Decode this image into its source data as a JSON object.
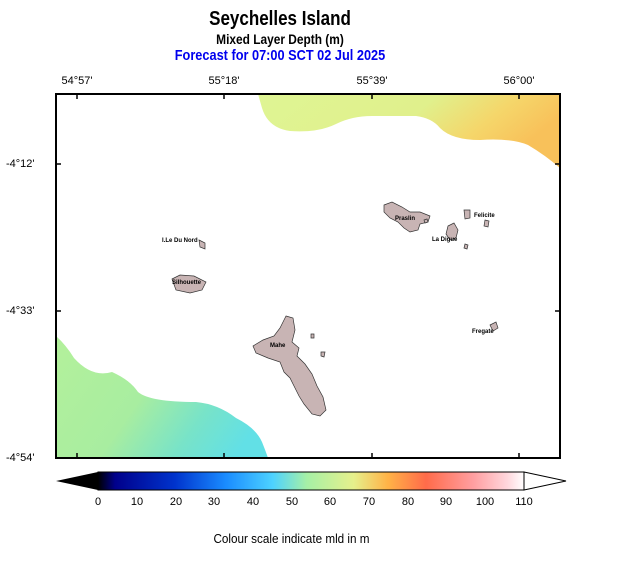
{
  "header": {
    "title": "Seychelles Island",
    "subtitle": "Mixed Layer Depth (m)",
    "forecast": "Forecast for  07:00 SCT 02 Jul 2025"
  },
  "map": {
    "lon_ticks": [
      "54°57'",
      "55°18'",
      "55°39'",
      "56°00'"
    ],
    "lat_ticks": [
      "-4°12'",
      "-4°33'",
      "-4°54'"
    ],
    "places": {
      "ile_du_nord": "I.Le Du Nord",
      "silhouette": "Silhouette",
      "praslin": "Praslin",
      "felicite": "Felicite",
      "la_digue": "La Digue",
      "mahe": "Mahe",
      "fregate": "Fregate"
    },
    "land_color": "#c8b4b4",
    "background_color": "#ffffff"
  },
  "colorbar": {
    "ticks": [
      "0",
      "10",
      "20",
      "30",
      "40",
      "50",
      "60",
      "70",
      "80",
      "90",
      "100",
      "110"
    ],
    "caption": "Colour scale indicate mld in m",
    "colors": [
      "#000000",
      "#00008b",
      "#0033cc",
      "#1a8cff",
      "#4dd2ff",
      "#a6f0a6",
      "#e6f08c",
      "#ffb347",
      "#ff6b4a",
      "#ff9ea0",
      "#ffd6dc",
      "#ffffff"
    ]
  }
}
